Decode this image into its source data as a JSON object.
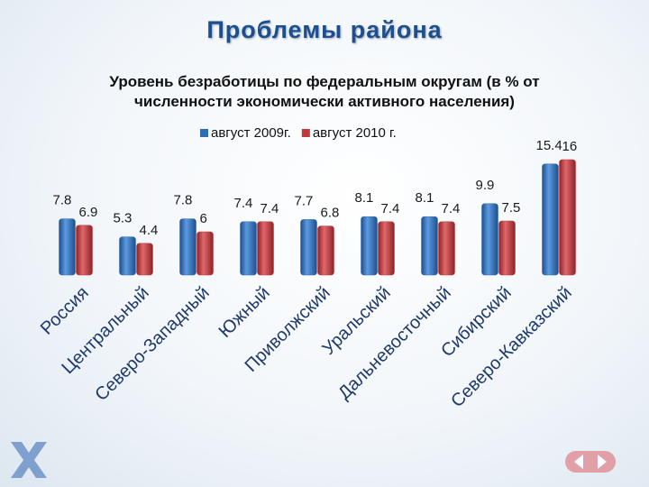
{
  "title": "Проблемы района",
  "chart_data": {
    "type": "bar",
    "title": "Уровень безработицы по федеральным округам (в % от численности экономически активного населения)",
    "categories": [
      "Россия",
      "Центральный",
      "Северо-Западный",
      "Южный",
      "Приволжский",
      "Уральский",
      "Дальневосточный",
      "Сибирский",
      "Северо-Кавказский"
    ],
    "series": [
      {
        "name": "август 2009г.",
        "color": "#2f6db3",
        "values": [
          7.8,
          5.3,
          7.8,
          7.4,
          7.7,
          8.1,
          8.1,
          9.9,
          15.4
        ]
      },
      {
        "name": "август 2010 г.",
        "color": "#c0393c",
        "values": [
          6.9,
          4.4,
          6,
          7.4,
          6.8,
          7.4,
          7.4,
          7.5,
          16
        ]
      }
    ],
    "legend": "top"
  }
}
